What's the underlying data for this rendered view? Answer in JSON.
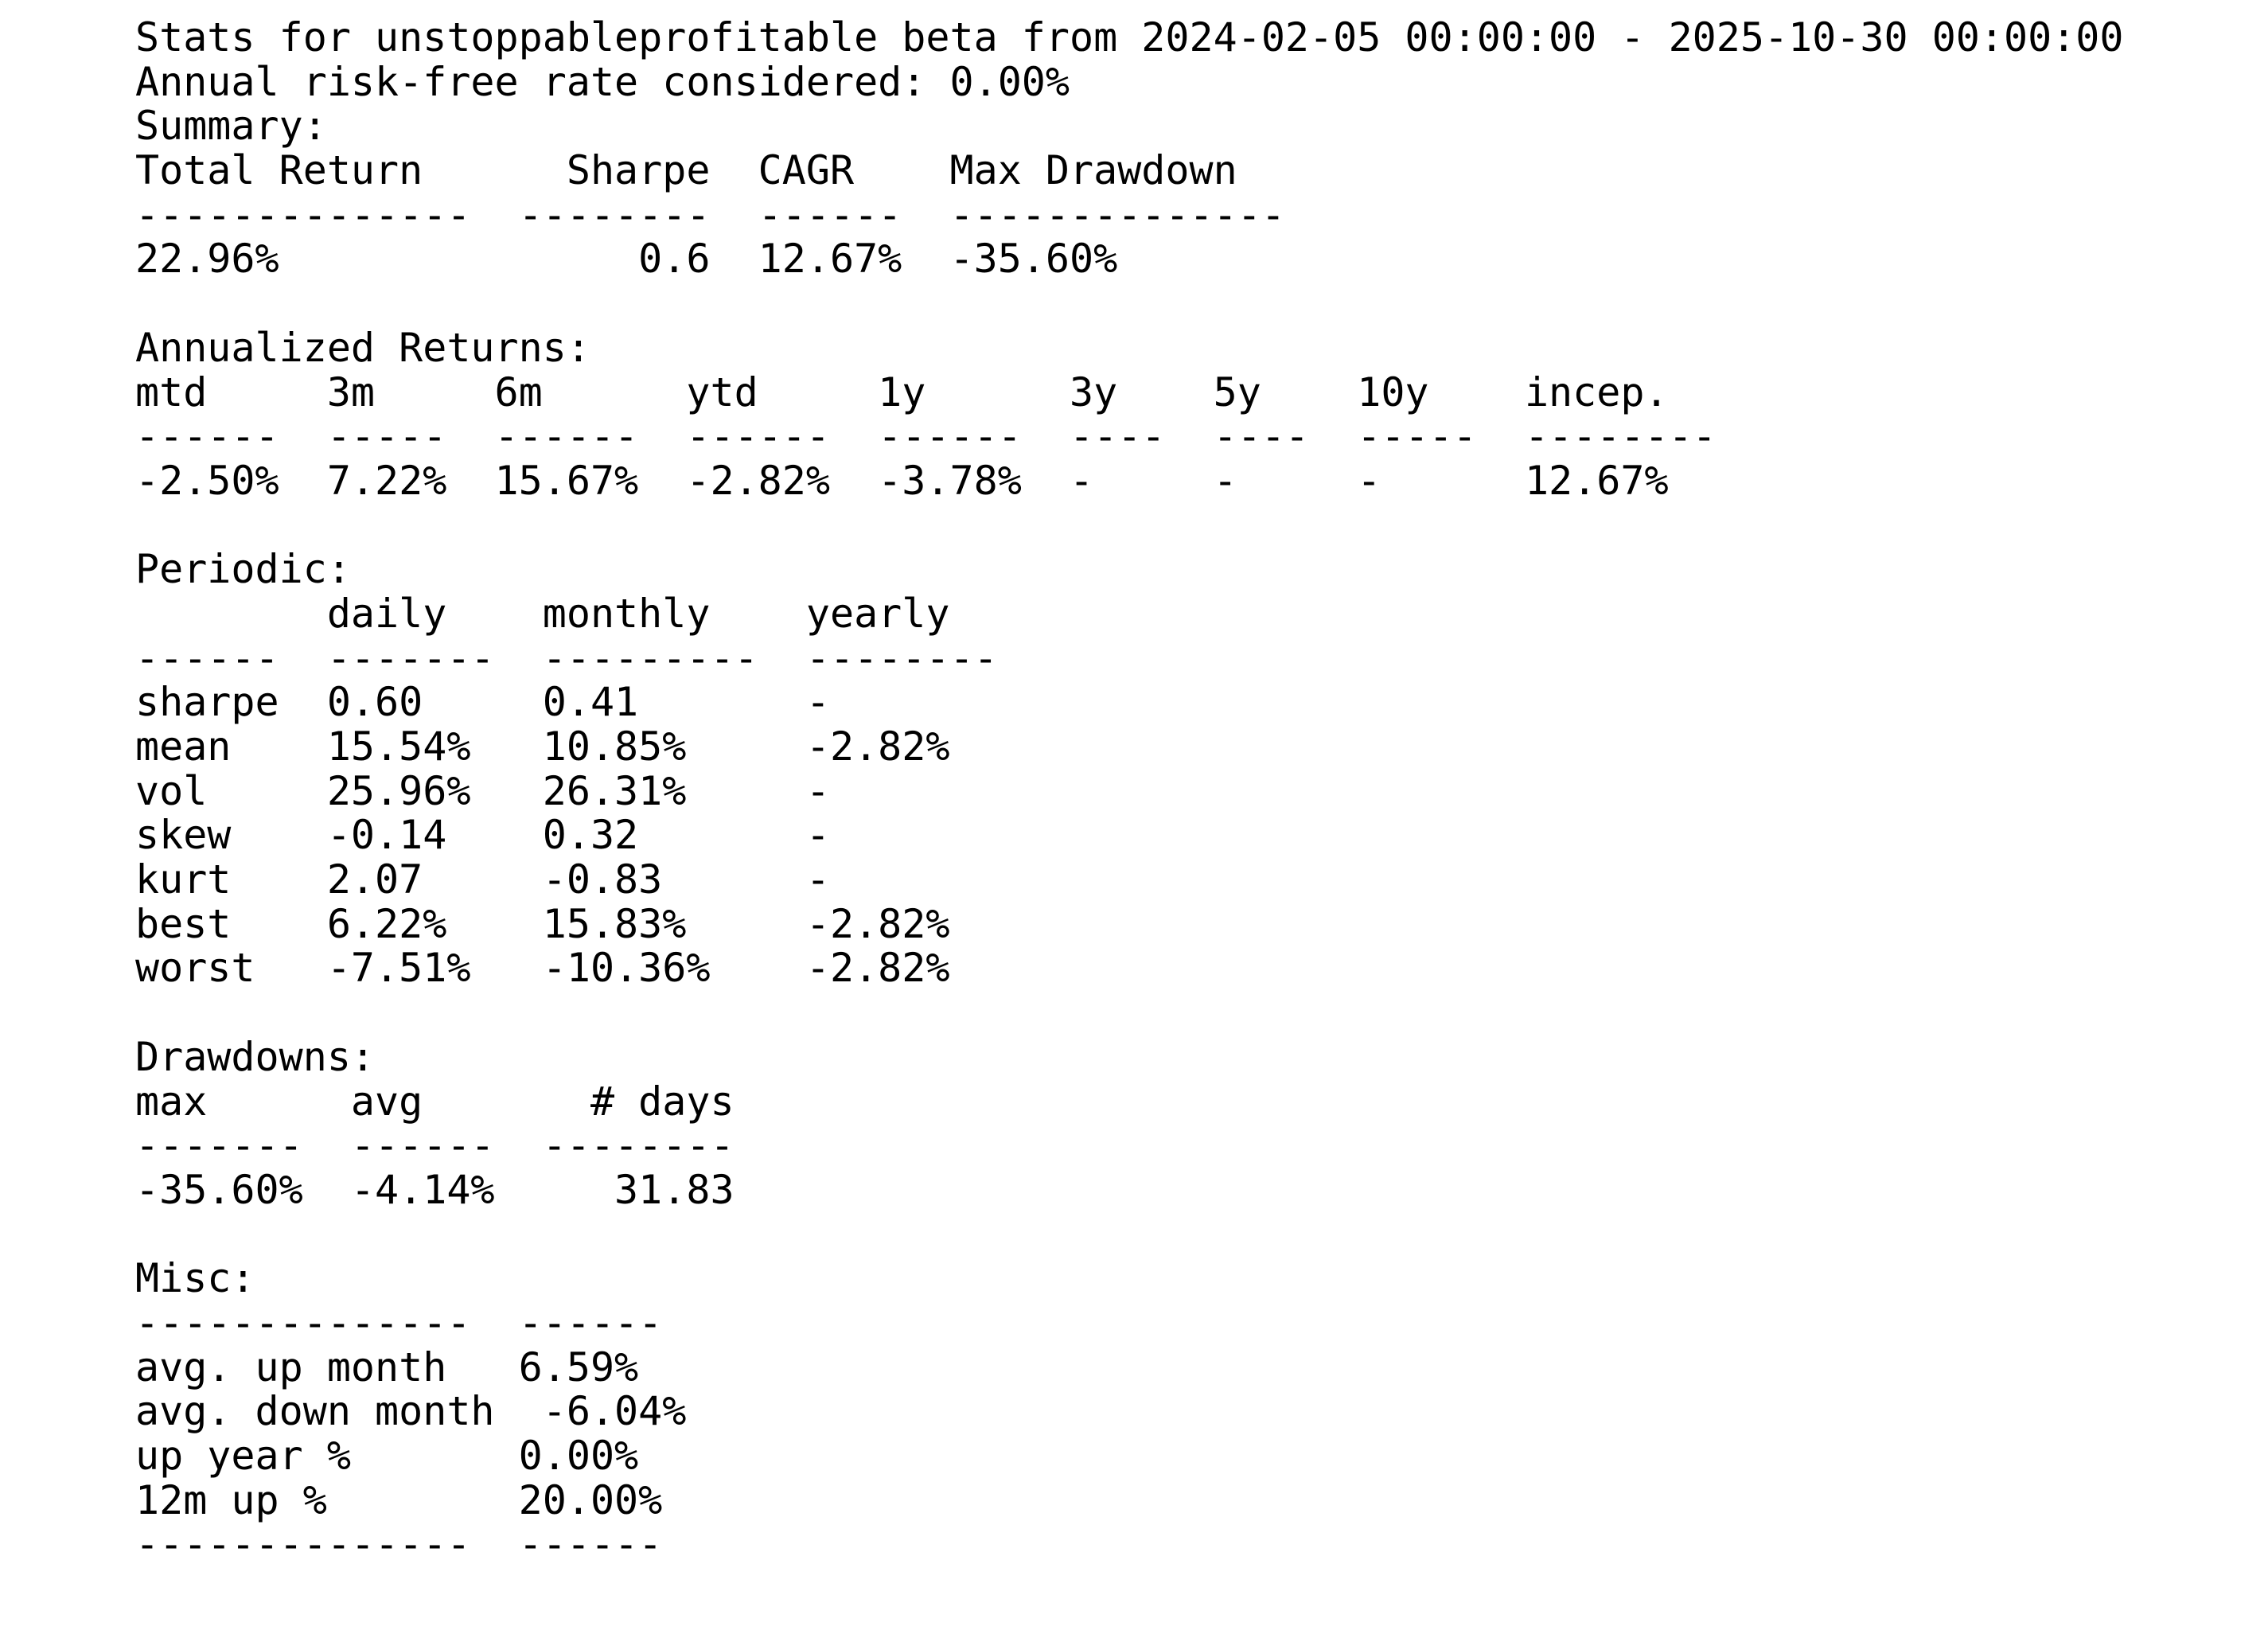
{
  "document": {
    "lines": [
      "Stats for unstoppableprofitable beta from 2024-02-05 00:00:00 - 2025-10-30 00:00:00",
      "Annual risk-free rate considered: 0.00%",
      "Summary:",
      "Total Return      Sharpe  CAGR    Max Drawdown",
      "--------------  --------  ------  --------------",
      "22.96%               0.6  12.67%  -35.60%",
      "",
      "Annualized Returns:",
      "mtd     3m     6m      ytd     1y      3y    5y    10y    incep.",
      "------  -----  ------  ------  ------  ----  ----  -----  --------",
      "-2.50%  7.22%  15.67%  -2.82%  -3.78%  -     -     -      12.67%",
      "",
      "Periodic:",
      "        daily    monthly    yearly",
      "------  -------  ---------  --------",
      "sharpe  0.60     0.41       -",
      "mean    15.54%   10.85%     -2.82%",
      "vol     25.96%   26.31%     -",
      "skew    -0.14    0.32       -",
      "kurt    2.07     -0.83      -",
      "best    6.22%    15.83%     -2.82%",
      "worst   -7.51%   -10.36%    -2.82%",
      "",
      "Drawdowns:",
      "max      avg       # days",
      "-------  ------  --------",
      "-35.60%  -4.14%     31.83",
      "",
      "Misc:",
      "--------------  ------",
      "avg. up month   6.59%",
      "avg. down month  -6.04%",
      "up year %       0.00%",
      "12m up %        20.00%",
      "--------------  ------"
    ]
  }
}
